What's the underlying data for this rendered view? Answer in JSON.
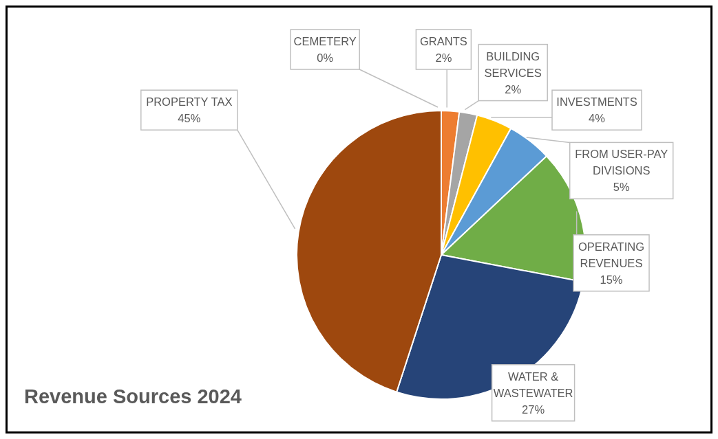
{
  "chart_data": {
    "type": "pie",
    "title": "Revenue Sources 2024",
    "categories": [
      "CEMETERY",
      "GRANTS",
      "BUILDING SERVICES",
      "INVESTMENTS",
      "FROM USER-PAY DIVISIONS",
      "OPERATING REVENUES",
      "WATER & WASTEWATER",
      "PROPERTY TAX"
    ],
    "values": [
      0,
      2,
      2,
      4,
      5,
      15,
      27,
      45
    ],
    "value_labels": [
      "0%",
      "2%",
      "2%",
      "4%",
      "5%",
      "15%",
      "27%",
      "45%"
    ],
    "colors": [
      "#4472c4",
      "#ed7d31",
      "#a5a5a5",
      "#ffc000",
      "#5b9bd5",
      "#70ad47",
      "#264478",
      "#9e480e"
    ]
  }
}
